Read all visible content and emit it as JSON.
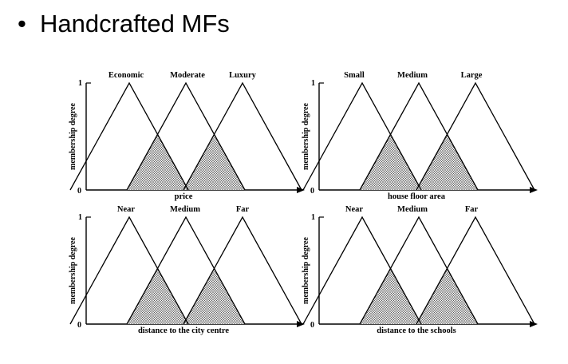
{
  "heading": {
    "bullet": "•",
    "text": "Handcrafted MFs"
  },
  "axis": {
    "y_top": "1",
    "y_bottom": "0",
    "ylabel": "membership degree"
  },
  "panels": [
    {
      "xlabel": "price",
      "sets": [
        "Economic",
        "Moderate",
        "Luxury"
      ]
    },
    {
      "xlabel": "house floor area",
      "sets": [
        "Small",
        "Medium",
        "Large"
      ]
    },
    {
      "xlabel": "distance to the city centre",
      "sets": [
        "Near",
        "Medium",
        "Far"
      ]
    },
    {
      "xlabel": "distance to the schools",
      "sets": [
        "Near",
        "Medium",
        "Far"
      ]
    }
  ]
}
